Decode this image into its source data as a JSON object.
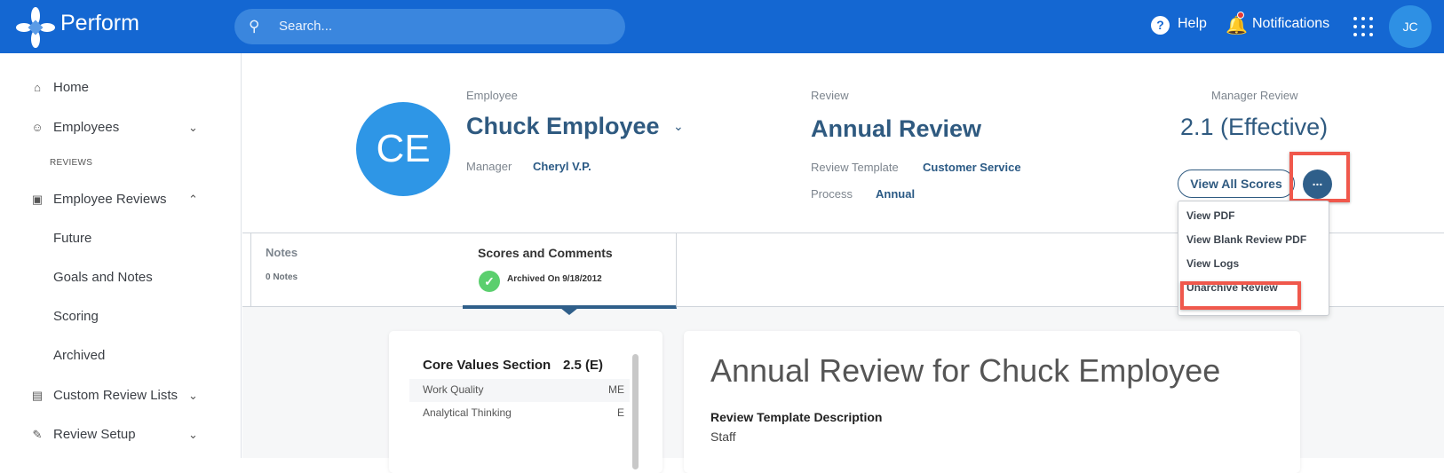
{
  "topbar": {
    "brand": "Perform",
    "search_placeholder": "Search...",
    "help": "Help",
    "notifications": "Notifications",
    "user_initials": "JC",
    "colors": {
      "bar": "#1467d2",
      "notification_dot": "#e53935"
    }
  },
  "sidebar": {
    "items": [
      {
        "label": "Home",
        "icon": "home-icon"
      },
      {
        "label": "Employees",
        "icon": "people-icon"
      },
      {
        "label": "Employee Reviews",
        "icon": "badge-icon"
      },
      {
        "label": "Custom Review Lists",
        "icon": "chart-icon"
      },
      {
        "label": "Review Setup",
        "icon": "clipboard-icon"
      }
    ],
    "section_heading": "REVIEWS",
    "sub_items": [
      "Future",
      "Goals and Notes",
      "Scoring",
      "Archived"
    ]
  },
  "header": {
    "employee_label": "Employee",
    "employee_initials": "CE",
    "employee_name": "Chuck Employee",
    "manager_label": "Manager",
    "manager_value": "Cheryl V.P.",
    "review_label": "Review",
    "review_name": "Annual Review",
    "template_label": "Review Template",
    "template_value": "Customer Service",
    "process_label": "Process",
    "process_value": "Annual",
    "manager_review_label": "Manager Review",
    "manager_review_score": "2.1 (Effective)",
    "view_all_scores": "View All Scores",
    "more_button": "..."
  },
  "menu": {
    "items": [
      "View PDF",
      "View Blank Review PDF",
      "View Logs",
      "Unarchive Review"
    ],
    "highlight_color": "#f0584c"
  },
  "tabs": {
    "notes": {
      "title": "Notes",
      "subtitle": "0 Notes"
    },
    "scores": {
      "title": "Scores and Comments",
      "status": "Archived On 9/18/2012"
    }
  },
  "scores_panel": {
    "section": "Core Values Section",
    "section_score": "2.5 (E)",
    "rows": [
      {
        "name": "Work Quality",
        "score": "ME"
      },
      {
        "name": "Analytical Thinking",
        "score": "E"
      }
    ]
  },
  "review_doc": {
    "title": "Annual Review for Chuck Employee",
    "description_label": "Review Template Description",
    "description": "Staff"
  }
}
